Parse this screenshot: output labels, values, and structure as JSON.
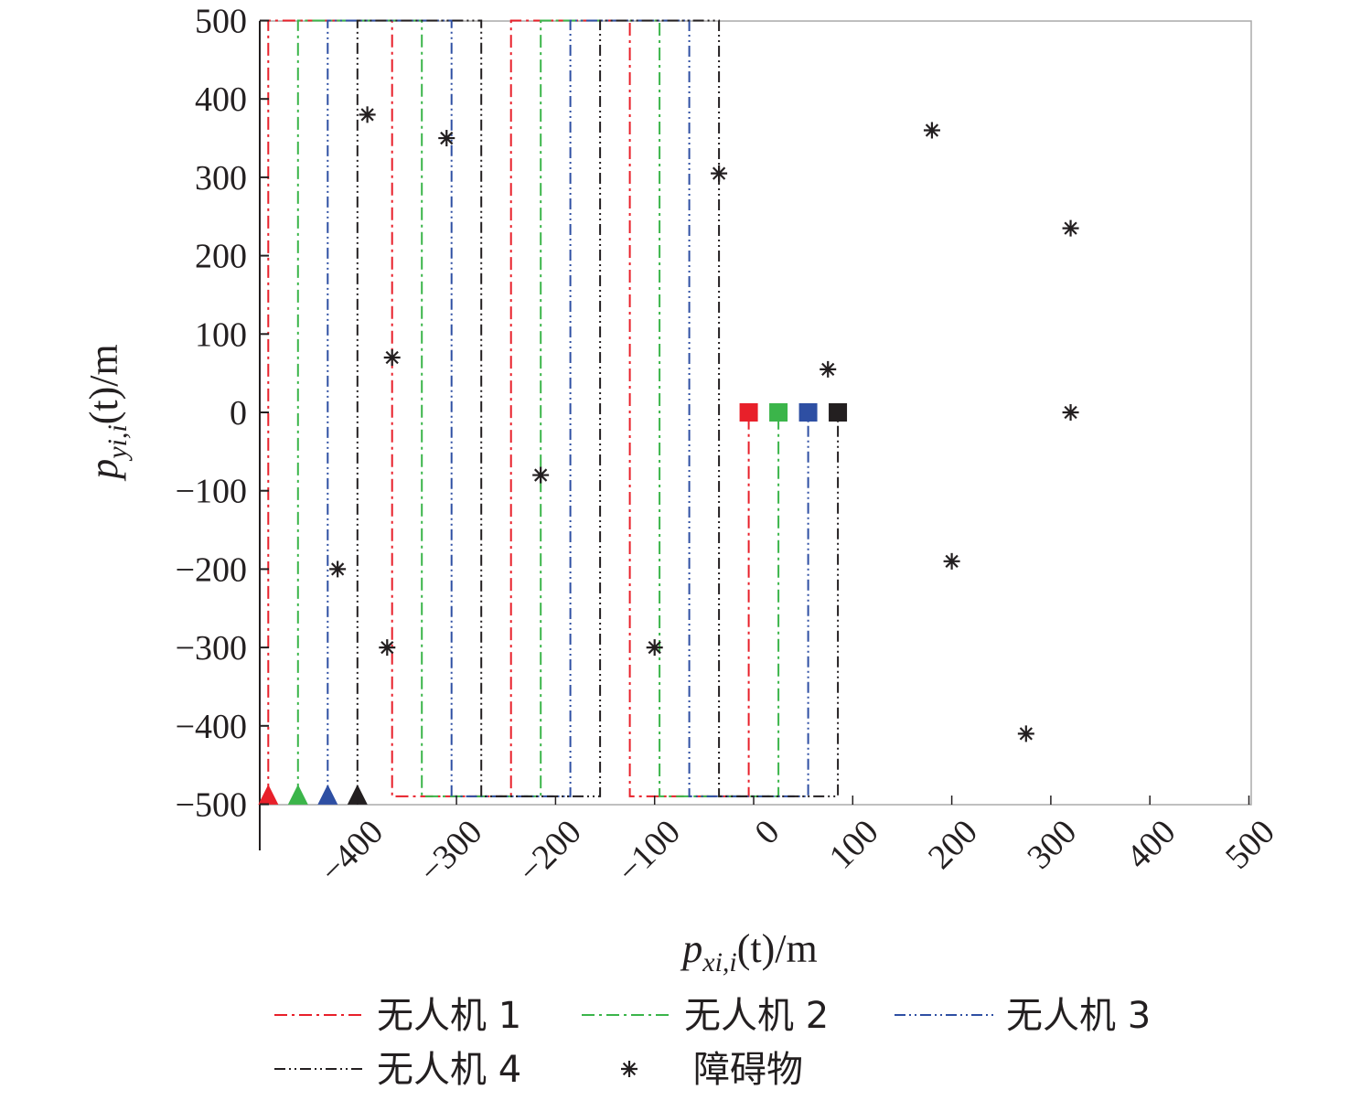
{
  "chart_data": {
    "type": "line",
    "xlabel": {
      "base": "p",
      "sub": "xi,i",
      "rest": "(t)/m"
    },
    "ylabel": {
      "base": "p",
      "sub": "yi,i",
      "rest": "(t)/m"
    },
    "xlim": [
      -500,
      500
    ],
    "ylim": [
      -500,
      500
    ],
    "x_ticks": [
      "−400",
      "−300",
      "−200",
      "−100",
      "0",
      "100",
      "200",
      "300",
      "400",
      "500"
    ],
    "x_tick_values": [
      -400,
      -300,
      -200,
      -100,
      0,
      100,
      200,
      300,
      400,
      500
    ],
    "y_ticks": [
      "500",
      "400",
      "300",
      "200",
      "100",
      "0",
      "−100",
      "−200",
      "−300",
      "−400",
      "−500"
    ],
    "y_tick_values": [
      500,
      400,
      300,
      200,
      100,
      0,
      -100,
      -200,
      -300,
      -400,
      -500
    ],
    "grid": false,
    "legend_position": "bottom",
    "series": [
      {
        "name": "无人机 1",
        "color": "#e8202a",
        "dash": "dashdot",
        "points": [
          [
            -490,
            -490
          ],
          [
            -490,
            500
          ],
          [
            -365,
            500
          ],
          [
            -365,
            -490
          ],
          [
            -245,
            -490
          ],
          [
            -245,
            500
          ],
          [
            -125,
            500
          ],
          [
            -125,
            -490
          ],
          [
            -5,
            -490
          ],
          [
            -5,
            0
          ]
        ]
      },
      {
        "name": "无人机 2",
        "color": "#3bb54a",
        "dash": "dashdot",
        "points": [
          [
            -460,
            -490
          ],
          [
            -460,
            500
          ],
          [
            -335,
            500
          ],
          [
            -335,
            -490
          ],
          [
            -215,
            -490
          ],
          [
            -215,
            500
          ],
          [
            -95,
            500
          ],
          [
            -95,
            -490
          ],
          [
            25,
            -490
          ],
          [
            25,
            0
          ]
        ]
      },
      {
        "name": "无人机 3",
        "color": "#2e4fa3",
        "dash": "dashdotdot",
        "points": [
          [
            -430,
            -490
          ],
          [
            -430,
            500
          ],
          [
            -305,
            500
          ],
          [
            -305,
            -490
          ],
          [
            -185,
            -490
          ],
          [
            -185,
            500
          ],
          [
            -65,
            500
          ],
          [
            -65,
            -490
          ],
          [
            55,
            -490
          ],
          [
            55,
            0
          ]
        ]
      },
      {
        "name": "无人机 4",
        "color": "#231f20",
        "dash": "dashdotdot",
        "points": [
          [
            -400,
            -490
          ],
          [
            -400,
            500
          ],
          [
            -275,
            500
          ],
          [
            -275,
            -490
          ],
          [
            -155,
            -490
          ],
          [
            -155,
            500
          ],
          [
            -35,
            500
          ],
          [
            -35,
            -490
          ],
          [
            85,
            -490
          ],
          [
            85,
            0
          ]
        ]
      }
    ],
    "obstacles": {
      "name": "障碍物",
      "points": [
        [
          -390,
          380
        ],
        [
          -310,
          350
        ],
        [
          -35,
          305
        ],
        [
          180,
          360
        ],
        [
          320,
          235
        ],
        [
          -365,
          70
        ],
        [
          75,
          55
        ],
        [
          320,
          0
        ],
        [
          -215,
          -80
        ],
        [
          -420,
          -200
        ],
        [
          200,
          -190
        ],
        [
          -370,
          -300
        ],
        [
          -100,
          -300
        ],
        [
          275,
          -410
        ]
      ]
    },
    "start_marker": "triangle",
    "end_marker": "square",
    "colors": {
      "axis": "#231f20",
      "frame": "#aaaaaa"
    }
  }
}
